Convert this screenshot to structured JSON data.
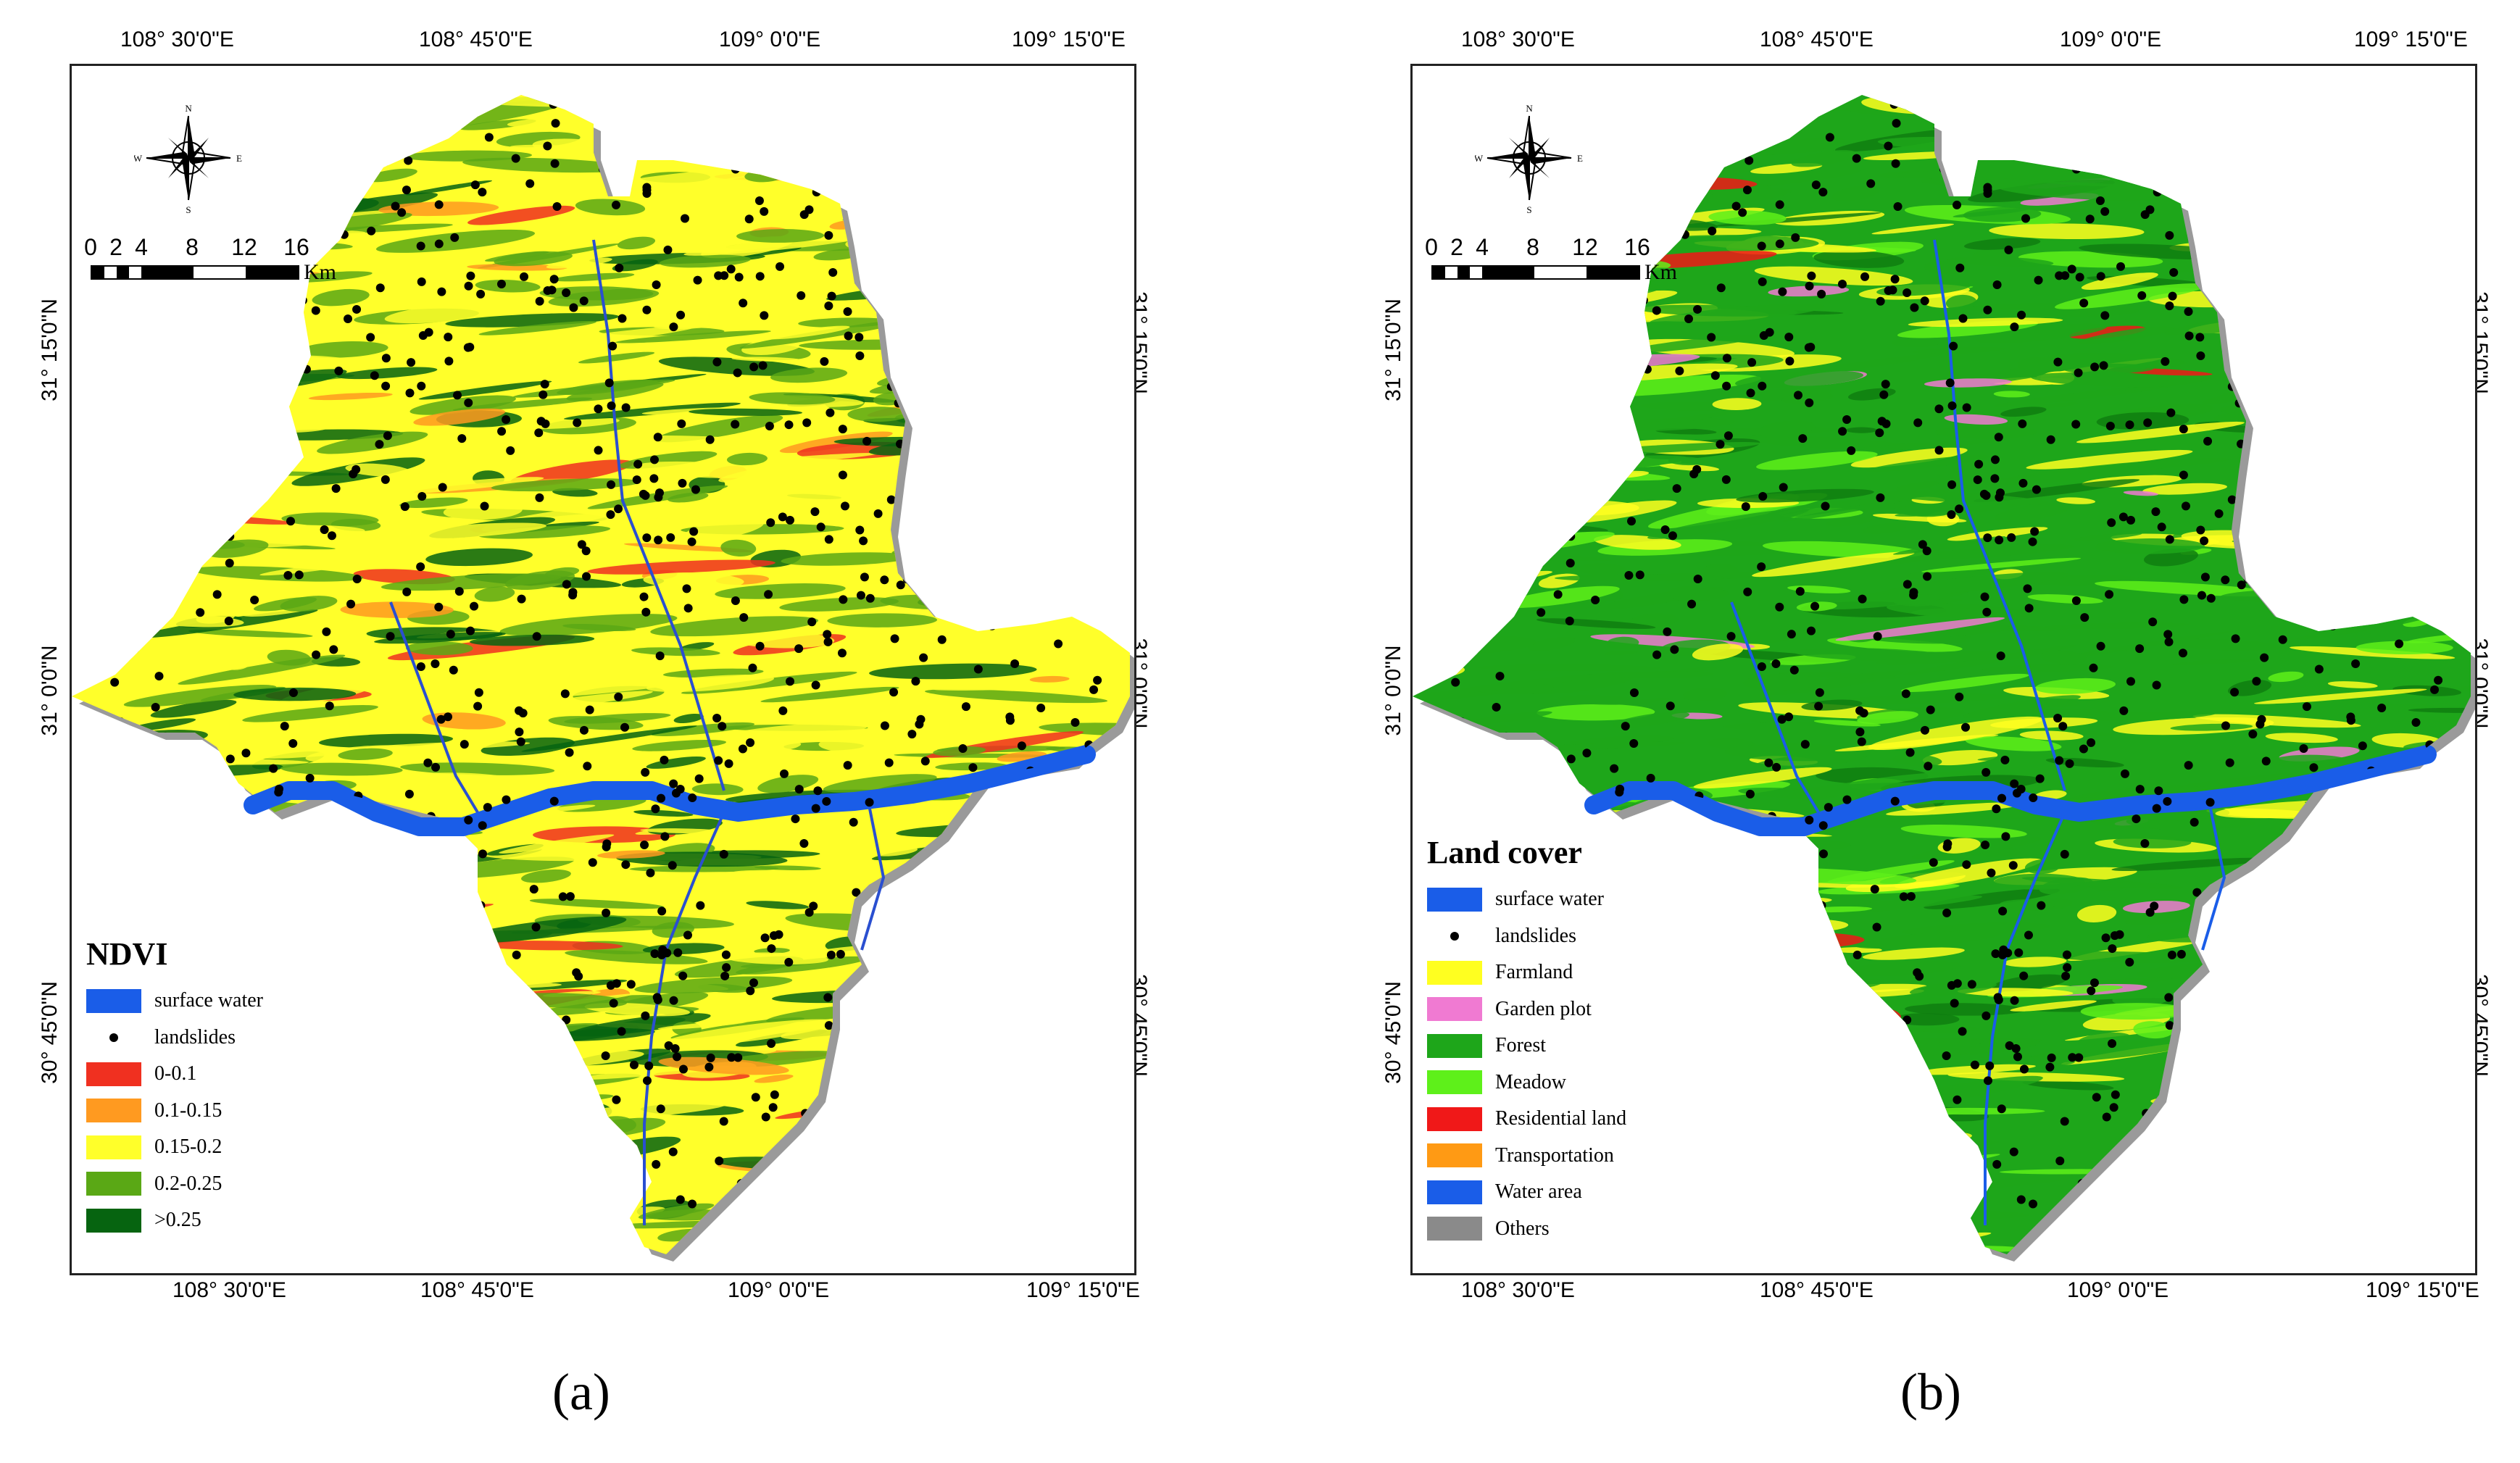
{
  "colors": {
    "water": "#1a5de8",
    "ndvi": [
      "#f03020",
      "#ff9a20",
      "#ffff2a",
      "#5aa815",
      "#066410"
    ],
    "landcover": [
      "#ffff20",
      "#f07ad2",
      "#1ea61a",
      "#5ef01a",
      "#f01818",
      "#ff9a14",
      "#1a5de8",
      "#8a8a8a"
    ]
  },
  "panels": [
    {
      "id": "a",
      "panel_label": "(a)",
      "top_ticks": [
        "108° 30'0\"E",
        "108° 45'0\"E",
        "109° 0'0\"E",
        "109° 15'0\"E"
      ],
      "bottom_ticks": [
        "108° 30'0\"E",
        "108° 45'0\"E",
        "109° 0'0\"E",
        "109° 15'0\"E"
      ],
      "left_ticks": [
        "31° 15'0\"N",
        "31° 0'0\"N",
        "30° 45'0\"N"
      ],
      "right_ticks": [
        "31° 15'0\"N",
        "31° 0'0\"N",
        "30° 45'0\"N"
      ],
      "compass": {
        "n": "N",
        "s": "S",
        "e": "E",
        "w": "W"
      },
      "scale": {
        "labels": [
          "0",
          "2",
          "4",
          "8",
          "12",
          "16"
        ],
        "unit": "Km"
      },
      "legend": {
        "title": "NDVI",
        "items": [
          {
            "label": "surface water",
            "kind": "water"
          },
          {
            "label": "landslides",
            "kind": "dot"
          },
          {
            "label": "0-0.1",
            "kind": "ndvi",
            "index": 0
          },
          {
            "label": "0.1-0.15",
            "kind": "ndvi",
            "index": 1
          },
          {
            "label": "0.15-0.2",
            "kind": "ndvi",
            "index": 2
          },
          {
            "label": "0.2-0.25",
            "kind": "ndvi",
            "index": 3
          },
          {
            "label": ">0.25",
            "kind": "ndvi",
            "index": 4
          }
        ]
      }
    },
    {
      "id": "b",
      "panel_label": "(b)",
      "top_ticks": [
        "108° 30'0\"E",
        "108° 45'0\"E",
        "109° 0'0\"E",
        "109° 15'0\"E"
      ],
      "bottom_ticks": [
        "108° 30'0\"E",
        "108° 45'0\"E",
        "109° 0'0\"E",
        "109° 15'0\"E"
      ],
      "left_ticks": [
        "31° 15'0\"N",
        "31° 0'0\"N",
        "30° 45'0\"N"
      ],
      "right_ticks": [
        "31° 15'0\"N",
        "31° 0'0\"N",
        "30° 45'0\"N"
      ],
      "compass": {
        "n": "N",
        "s": "S",
        "e": "E",
        "w": "W"
      },
      "scale": {
        "labels": [
          "0",
          "2",
          "4",
          "8",
          "12",
          "16"
        ],
        "unit": "Km"
      },
      "legend": {
        "title": "Land cover",
        "items": [
          {
            "label": "surface water",
            "kind": "water"
          },
          {
            "label": "landslides",
            "kind": "dot"
          },
          {
            "label": "Farmland",
            "kind": "lc",
            "index": 0
          },
          {
            "label": "Garden plot",
            "kind": "lc",
            "index": 1
          },
          {
            "label": "Forest",
            "kind": "lc",
            "index": 2
          },
          {
            "label": "Meadow",
            "kind": "lc",
            "index": 3
          },
          {
            "label": "Residential land",
            "kind": "lc",
            "index": 4
          },
          {
            "label": "Transportation",
            "kind": "lc",
            "index": 5
          },
          {
            "label": "Water area",
            "kind": "lc",
            "index": 6
          },
          {
            "label": "Others",
            "kind": "lc",
            "index": 7
          }
        ]
      }
    }
  ]
}
